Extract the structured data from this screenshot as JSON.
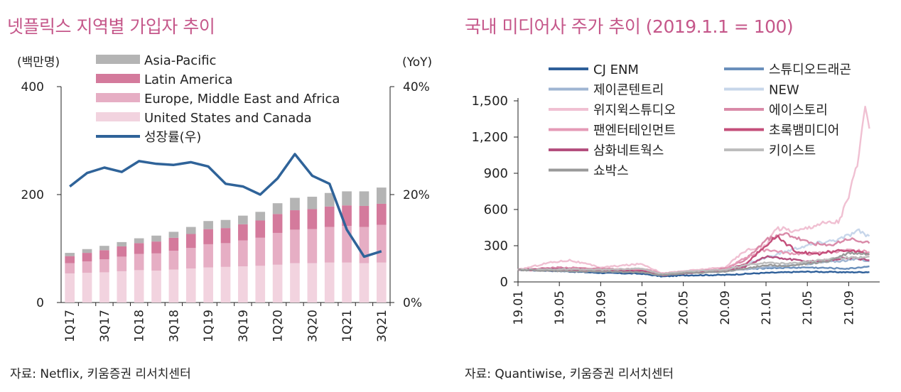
{
  "left_panel": {
    "title": "넷플릭스 지역별 가입자 추이",
    "source": "자료: Netflix, 키움증권 리서치센터"
  },
  "right_panel": {
    "title": "국내 미디어사 주가 추이 (2019.1.1 = 100)",
    "source": "자료: Quantiwise, 키움증권 리서치센터"
  },
  "chart_data": [
    {
      "type": "bar",
      "stacked": true,
      "title": "넷플릭스 지역별 가입자 추이",
      "y_unit_label": "(백만명)",
      "y2_unit_label": "(YoY)",
      "ylim": [
        0,
        400
      ],
      "yticks": [
        "0",
        "200",
        "400"
      ],
      "y2lim": [
        0,
        40
      ],
      "y2ticks": [
        "0%",
        "20%",
        "40%"
      ],
      "categories": [
        "1Q17",
        "2Q17",
        "3Q17",
        "4Q17",
        "1Q18",
        "2Q18",
        "3Q18",
        "4Q18",
        "1Q19",
        "2Q19",
        "3Q19",
        "4Q19",
        "1Q20",
        "2Q20",
        "3Q20",
        "4Q20",
        "1Q21",
        "2Q21",
        "3Q21"
      ],
      "xtick_labels": [
        "1Q17",
        "",
        "3Q17",
        "",
        "1Q18",
        "",
        "3Q18",
        "",
        "1Q19",
        "",
        "3Q19",
        "",
        "1Q20",
        "",
        "3Q20",
        "",
        "1Q21",
        "",
        "3Q21"
      ],
      "series": [
        {
          "name": "United States and Canada",
          "color": "#f2d3df",
          "values": [
            54,
            55,
            56,
            58,
            60,
            59,
            61,
            63,
            65,
            66,
            67,
            68,
            70,
            73,
            73,
            74,
            74,
            73,
            74
          ]
        },
        {
          "name": "Europe, Middle East and Africa",
          "color": "#e6aec4",
          "values": [
            19,
            21,
            24,
            27,
            30,
            32,
            35,
            38,
            43,
            44,
            48,
            52,
            59,
            62,
            63,
            66,
            68,
            67,
            70
          ]
        },
        {
          "name": "Latin America",
          "color": "#d47a9c",
          "values": [
            13,
            16,
            17,
            19,
            20,
            22,
            24,
            26,
            28,
            28,
            30,
            32,
            35,
            36,
            37,
            38,
            38,
            39,
            39
          ]
        },
        {
          "name": "Asia-Pacific",
          "color": "#b4b4b4",
          "values": [
            6,
            7,
            8,
            8,
            9,
            11,
            11,
            13,
            15,
            15,
            16,
            16,
            20,
            23,
            23,
            25,
            26,
            27,
            30
          ]
        }
      ],
      "line_series": {
        "name": "성장률(우)",
        "color": "#2f6399",
        "values": [
          21.5,
          24,
          25,
          24.2,
          26.2,
          25.7,
          25.5,
          26,
          25.2,
          22,
          21.5,
          20,
          23,
          27.5,
          23.5,
          22,
          13.5,
          8.5,
          9.5
        ]
      }
    },
    {
      "type": "line",
      "title": "국내 미디어사 주가 추이 (2019.1.1 = 100)",
      "ylim": [
        0,
        1500
      ],
      "yticks": [
        "0",
        "300",
        "600",
        "900",
        "1,200",
        "1,500"
      ],
      "xlim": [
        "19.01",
        "21.12"
      ],
      "xtick_labels": [
        "19.01",
        "19.05",
        "19.09",
        "20.01",
        "20.05",
        "20.09",
        "21.01",
        "21.05",
        "21.09"
      ],
      "series": [
        {
          "name": "CJ ENM",
          "color": "#2e5f99",
          "points": [
            [
              0,
              100
            ],
            [
              4,
              90
            ],
            [
              8,
              75
            ],
            [
              12,
              68
            ],
            [
              14,
              45
            ],
            [
              16,
              55
            ],
            [
              20,
              58
            ],
            [
              24,
              75
            ],
            [
              28,
              85
            ],
            [
              32,
              80
            ],
            [
              34,
              82
            ]
          ]
        },
        {
          "name": "스튜디오드래곤",
          "color": "#6a8fbb",
          "points": [
            [
              0,
              100
            ],
            [
              4,
              95
            ],
            [
              8,
              85
            ],
            [
              12,
              85
            ],
            [
              14,
              55
            ],
            [
              16,
              80
            ],
            [
              20,
              95
            ],
            [
              24,
              115
            ],
            [
              28,
              120
            ],
            [
              32,
              110
            ],
            [
              34,
              130
            ]
          ]
        },
        {
          "name": "제이콘텐트리",
          "color": "#9fb5d2",
          "points": [
            [
              0,
              100
            ],
            [
              4,
              95
            ],
            [
              8,
              90
            ],
            [
              12,
              85
            ],
            [
              14,
              60
            ],
            [
              16,
              70
            ],
            [
              20,
              90
            ],
            [
              24,
              120
            ],
            [
              28,
              150
            ],
            [
              32,
              180
            ],
            [
              33,
              190
            ],
            [
              34,
              170
            ]
          ]
        },
        {
          "name": "NEW",
          "color": "#c7d6ea",
          "points": [
            [
              0,
              100
            ],
            [
              4,
              110
            ],
            [
              8,
              100
            ],
            [
              12,
              95
            ],
            [
              14,
              60
            ],
            [
              16,
              75
            ],
            [
              20,
              100
            ],
            [
              24,
              200
            ],
            [
              27,
              280
            ],
            [
              29,
              320
            ],
            [
              31,
              350
            ],
            [
              33,
              420
            ],
            [
              34,
              380
            ]
          ]
        },
        {
          "name": "위지윅스튜디오",
          "color": "#f0c0d2",
          "points": [
            [
              0,
              100
            ],
            [
              3,
              160
            ],
            [
              5,
              180
            ],
            [
              8,
              120
            ],
            [
              12,
              150
            ],
            [
              14,
              70
            ],
            [
              16,
              90
            ],
            [
              20,
              120
            ],
            [
              22,
              260
            ],
            [
              24,
              300
            ],
            [
              25,
              450
            ],
            [
              27,
              420
            ],
            [
              29,
              480
            ],
            [
              31,
              500
            ],
            [
              32,
              700
            ],
            [
              33,
              1050
            ],
            [
              33.6,
              1400
            ],
            [
              34,
              1270
            ]
          ]
        },
        {
          "name": "에이스토리",
          "color": "#d98aa8",
          "points": [
            [
              0,
              100
            ],
            [
              4,
              120
            ],
            [
              8,
              110
            ],
            [
              12,
              95
            ],
            [
              14,
              55
            ],
            [
              16,
              75
            ],
            [
              20,
              110
            ],
            [
              22,
              180
            ],
            [
              24,
              350
            ],
            [
              26,
              400
            ],
            [
              28,
              330
            ],
            [
              30,
              300
            ],
            [
              32,
              360
            ],
            [
              34,
              320
            ]
          ]
        },
        {
          "name": "팬엔터테인먼트",
          "color": "#e49ab6",
          "points": [
            [
              0,
              100
            ],
            [
              4,
              110
            ],
            [
              8,
              100
            ],
            [
              12,
              110
            ],
            [
              14,
              70
            ],
            [
              16,
              85
            ],
            [
              20,
              100
            ],
            [
              22,
              200
            ],
            [
              24,
              270
            ],
            [
              26,
              240
            ],
            [
              28,
              230
            ],
            [
              30,
              250
            ],
            [
              32,
              260
            ],
            [
              34,
              250
            ]
          ]
        },
        {
          "name": "초록뱀미디어",
          "color": "#c44e7a",
          "points": [
            [
              0,
              100
            ],
            [
              4,
              95
            ],
            [
              8,
              90
            ],
            [
              12,
              85
            ],
            [
              14,
              60
            ],
            [
              16,
              75
            ],
            [
              20,
              95
            ],
            [
              22,
              150
            ],
            [
              24,
              300
            ],
            [
              25,
              380
            ],
            [
              27,
              250
            ],
            [
              29,
              230
            ],
            [
              31,
              260
            ],
            [
              33,
              250
            ],
            [
              34,
              230
            ]
          ]
        },
        {
          "name": "삼화네트웍스",
          "color": "#b44f7e",
          "points": [
            [
              0,
              100
            ],
            [
              4,
              110
            ],
            [
              8,
              95
            ],
            [
              12,
              90
            ],
            [
              14,
              55
            ],
            [
              16,
              70
            ],
            [
              20,
              90
            ],
            [
              22,
              130
            ],
            [
              24,
              210
            ],
            [
              26,
              190
            ],
            [
              28,
              170
            ],
            [
              30,
              180
            ],
            [
              32,
              200
            ],
            [
              34,
              180
            ]
          ]
        },
        {
          "name": "키이스트",
          "color": "#bdbdbd",
          "points": [
            [
              0,
              100
            ],
            [
              4,
              105
            ],
            [
              8,
              100
            ],
            [
              12,
              110
            ],
            [
              14,
              65
            ],
            [
              16,
              85
            ],
            [
              20,
              100
            ],
            [
              22,
              140
            ],
            [
              24,
              160
            ],
            [
              26,
              150
            ],
            [
              28,
              170
            ],
            [
              30,
              190
            ],
            [
              32,
              200
            ],
            [
              34,
              210
            ]
          ]
        },
        {
          "name": "쇼박스",
          "color": "#9a9a9a",
          "points": [
            [
              0,
              100
            ],
            [
              4,
              90
            ],
            [
              8,
              85
            ],
            [
              12,
              80
            ],
            [
              14,
              55
            ],
            [
              16,
              70
            ],
            [
              20,
              85
            ],
            [
              22,
              110
            ],
            [
              24,
              140
            ],
            [
              26,
              130
            ],
            [
              28,
              150
            ],
            [
              30,
              170
            ],
            [
              32,
              240
            ],
            [
              34,
              230
            ]
          ]
        }
      ]
    }
  ]
}
